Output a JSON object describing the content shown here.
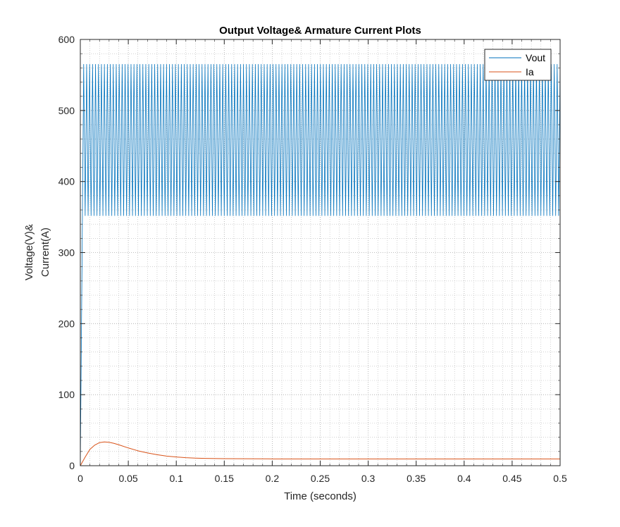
{
  "chart_data": {
    "type": "line",
    "title": "Output Voltage& Armature Current Plots",
    "xlabel": "Time (seconds)",
    "ylabel_lines": [
      "Voltage(V)&",
      "Current(A)"
    ],
    "xlim": [
      0,
      0.5
    ],
    "ylim": [
      0,
      600
    ],
    "x_ticks": [
      0,
      0.05,
      0.1,
      0.15,
      0.2,
      0.25,
      0.3,
      0.35,
      0.4,
      0.45,
      0.5
    ],
    "x_tick_labels": [
      "0",
      "0.05",
      "0.1",
      "0.15",
      "0.2",
      "0.25",
      "0.3",
      "0.35",
      "0.4",
      "0.45",
      "0.5"
    ],
    "y_ticks": [
      0,
      100,
      200,
      300,
      400,
      500,
      600
    ],
    "y_tick_labels": [
      "0",
      "100",
      "200",
      "300",
      "400",
      "500",
      "600"
    ],
    "grid": true,
    "minor_grid": true,
    "legend_position": "top-right",
    "series": [
      {
        "name": "Vout",
        "color": "#0072BD",
        "pattern": "oscillating",
        "rise_end_time": 0.0035,
        "min": 352,
        "max": 565,
        "cycles": 161
      },
      {
        "name": "Ia",
        "color": "#D95319",
        "x": [
          0,
          0.005,
          0.01,
          0.015,
          0.02,
          0.025,
          0.03,
          0.035,
          0.04,
          0.05,
          0.06,
          0.07,
          0.08,
          0.09,
          0.1,
          0.11,
          0.12,
          0.13,
          0.15,
          0.2,
          0.25,
          0.3,
          0.35,
          0.4,
          0.45,
          0.5
        ],
        "values": [
          0,
          12,
          23,
          29,
          32.5,
          33.5,
          33,
          31.5,
          29.5,
          25,
          21,
          18,
          15.5,
          13.5,
          12.3,
          11.3,
          10.7,
          10.3,
          9.9,
          9.6,
          9.5,
          9.5,
          9.5,
          9.5,
          9.5,
          9.5
        ]
      }
    ]
  }
}
